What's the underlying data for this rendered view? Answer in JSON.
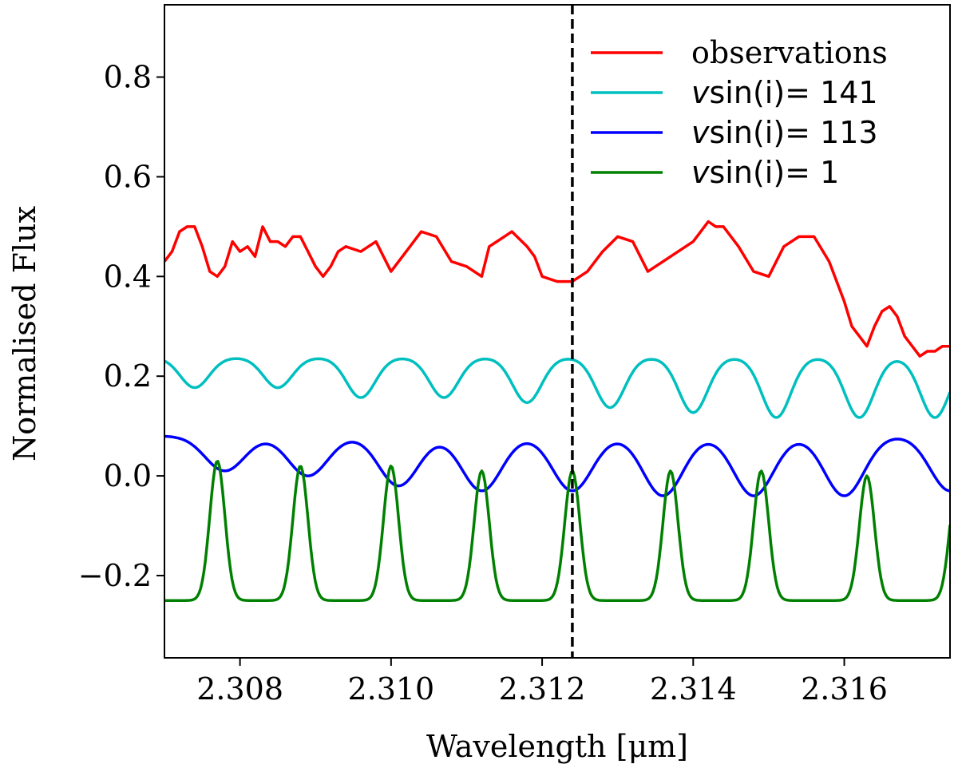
{
  "chart_data": {
    "type": "line",
    "title": "",
    "xlabel": "Wavelength [μm]",
    "ylabel": "Normalised Flux",
    "xlim": [
      2.307,
      2.3174
    ],
    "ylim": [
      -0.365,
      0.945
    ],
    "x_ticks": [
      2.308,
      2.31,
      2.312,
      2.314,
      2.316
    ],
    "x_tick_labels": [
      "2.308",
      "2.310",
      "2.312",
      "2.314",
      "2.316"
    ],
    "y_ticks": [
      -0.2,
      0.0,
      0.2,
      0.4,
      0.6,
      0.8
    ],
    "y_tick_labels": [
      "−0.2",
      "0.0",
      "0.2",
      "0.4",
      "0.6",
      "0.8"
    ],
    "grid": false,
    "legend_position": "top-right",
    "vline": {
      "x": 2.3124,
      "style": "dashed",
      "color": "#000000"
    },
    "legend": [
      {
        "series": "observations",
        "prefix": "",
        "label": "observations"
      },
      {
        "series": "vsini_141",
        "prefix": "v",
        "label": "sin(i)= 141"
      },
      {
        "series": "vsini_113",
        "prefix": "v",
        "label": "sin(i)= 113"
      },
      {
        "series": "vsini_1",
        "prefix": "v",
        "label": "sin(i)= 1"
      }
    ],
    "series": [
      {
        "id": "observations",
        "name": "observations",
        "color": "#ff0000",
        "x": [
          2.307,
          2.3071,
          2.3072,
          2.3073,
          2.3074,
          2.3075,
          2.3076,
          2.3077,
          2.3078,
          2.3079,
          2.308,
          2.3081,
          2.3082,
          2.3083,
          2.3084,
          2.3085,
          2.3086,
          2.3087,
          2.3088,
          2.3089,
          2.309,
          2.3091,
          2.3092,
          2.3093,
          2.3094,
          2.3096,
          2.3098,
          2.31,
          2.3102,
          2.3104,
          2.3106,
          2.3108,
          2.311,
          2.3112,
          2.3113,
          2.3114,
          2.3116,
          2.3118,
          2.3119,
          2.312,
          2.3122,
          2.3124,
          2.3126,
          2.3128,
          2.313,
          2.3132,
          2.3134,
          2.3136,
          2.3138,
          2.314,
          2.3142,
          2.3143,
          2.3144,
          2.3146,
          2.3148,
          2.315,
          2.3152,
          2.3154,
          2.3156,
          2.3158,
          2.316,
          2.3161,
          2.3162,
          2.3163,
          2.3164,
          2.3165,
          2.3166,
          2.3167,
          2.3168,
          2.3169,
          2.317,
          2.3171,
          2.3172,
          2.3173,
          2.3174
        ],
        "values": [
          0.43,
          0.45,
          0.49,
          0.5,
          0.5,
          0.46,
          0.41,
          0.4,
          0.42,
          0.47,
          0.45,
          0.46,
          0.44,
          0.5,
          0.47,
          0.47,
          0.46,
          0.48,
          0.48,
          0.45,
          0.42,
          0.4,
          0.42,
          0.45,
          0.46,
          0.45,
          0.47,
          0.41,
          0.45,
          0.49,
          0.48,
          0.43,
          0.42,
          0.4,
          0.46,
          0.47,
          0.49,
          0.46,
          0.44,
          0.4,
          0.39,
          0.39,
          0.41,
          0.45,
          0.48,
          0.47,
          0.41,
          0.43,
          0.45,
          0.47,
          0.51,
          0.5,
          0.5,
          0.46,
          0.41,
          0.4,
          0.46,
          0.48,
          0.48,
          0.43,
          0.35,
          0.3,
          0.28,
          0.26,
          0.3,
          0.33,
          0.34,
          0.32,
          0.28,
          0.26,
          0.24,
          0.25,
          0.25,
          0.26,
          0.26
        ]
      },
      {
        "id": "vsini_141",
        "name": "vsin(i)= 141",
        "color": "#00bfbf",
        "centers": [
          2.3074,
          2.3085,
          2.3096,
          2.3107,
          2.3118,
          2.3129,
          2.314,
          2.3151,
          2.3162,
          2.3172
        ],
        "depths": [
          0.06,
          0.06,
          0.08,
          0.08,
          0.09,
          0.1,
          0.11,
          0.12,
          0.12,
          0.12
        ],
        "baseline": 0.237,
        "width": 0.00019
      },
      {
        "id": "vsini_113",
        "name": "vsin(i)= 113",
        "color": "#0000ff",
        "centers": [
          2.3078,
          2.3089,
          2.3101,
          2.3112,
          2.3124,
          2.3136,
          2.3148,
          2.316,
          2.3174
        ],
        "depths": [
          0.07,
          0.08,
          0.1,
          0.11,
          0.11,
          0.12,
          0.12,
          0.12,
          0.11
        ],
        "baseline": 0.08,
        "width": 0.00026
      },
      {
        "id": "vsini_1",
        "name": "vsin(i)= 1",
        "color": "#008000",
        "centers": [
          2.3077,
          2.3088,
          2.31,
          2.3112,
          2.3124,
          2.3137,
          2.3149,
          2.3163,
          2.3175
        ],
        "heights": [
          0.28,
          0.27,
          0.27,
          0.26,
          0.26,
          0.26,
          0.26,
          0.25,
          0.25
        ],
        "baseline": -0.25,
        "width": 0.0001
      }
    ]
  }
}
